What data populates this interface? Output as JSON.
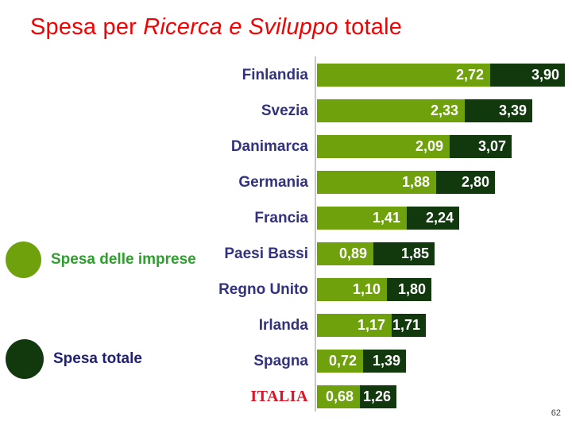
{
  "title": {
    "prefix": "Spesa per ",
    "italic": "Ricerca e Sviluppo",
    "suffix": " totale"
  },
  "legend": {
    "items": [
      {
        "label": "Spesa delle imprese",
        "swatch": "light-green-circle"
      },
      {
        "label": "Spesa totale",
        "swatch": "dark-green-circle"
      }
    ]
  },
  "page_number": "62",
  "colors": {
    "bar_light": "#6ea10c",
    "bar_dark": "#12390e",
    "country_label": "#32327e",
    "title_red": "#f40000",
    "italy_red": "#dc1425",
    "legend_green": "#2f9e2f",
    "legend_navy": "#1f1f78",
    "axis_line": "#c8c8c8",
    "value_white": "#ffffff",
    "page_num": "#404040"
  },
  "chart_data": {
    "type": "bar",
    "orientation": "horizontal",
    "title": "Spesa per Ricerca e Sviluppo totale",
    "decimal_separator": ",",
    "xlim": [
      0,
      4.0
    ],
    "grid": false,
    "legend_position": "left",
    "categories": [
      "Finlandia",
      "Svezia",
      "Danimarca",
      "Germania",
      "Francia",
      "Paesi Bassi",
      "Regno Unito",
      "Irlanda",
      "Spagna",
      "ITALIA"
    ],
    "highlight_category": "ITALIA",
    "series": [
      {
        "name": "Spesa delle imprese",
        "values": [
          2.72,
          2.33,
          2.09,
          1.88,
          1.41,
          0.89,
          1.1,
          1.17,
          0.72,
          0.68
        ]
      },
      {
        "name": "Spesa totale",
        "values": [
          3.9,
          3.39,
          3.07,
          2.8,
          2.24,
          1.85,
          1.8,
          1.71,
          1.39,
          1.26
        ]
      }
    ]
  }
}
